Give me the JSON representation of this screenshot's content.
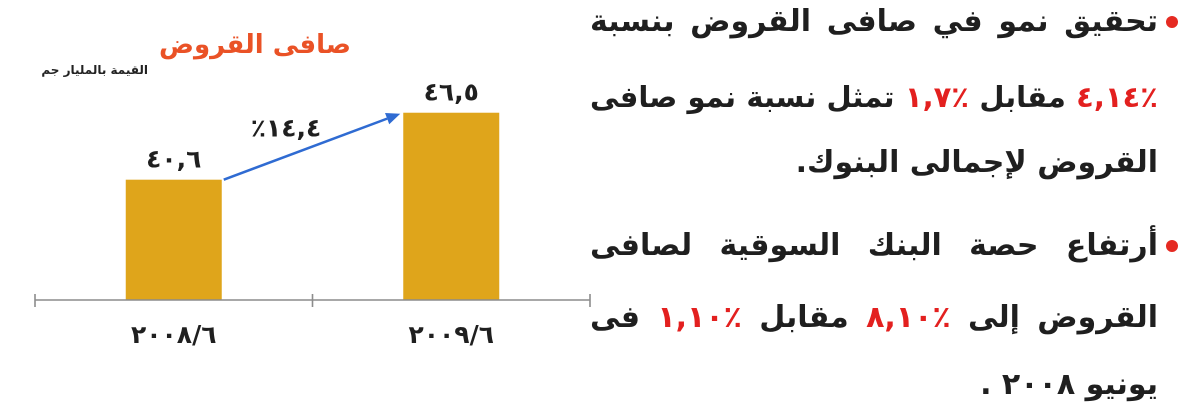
{
  "chart_data": {
    "type": "bar",
    "title": "صافى القروض",
    "subtitle": "القيمة بالمليار جم",
    "categories": [
      "٢٠٠٨/٦",
      "٢٠٠٩/٦"
    ],
    "values": [
      40.6,
      46.5
    ],
    "data_labels": [
      "٤٠,٦",
      "٤٦,٥"
    ],
    "ylim": [
      30,
      50
    ],
    "grid": false,
    "bar_color": "#dfa51b",
    "axis_color": "#8c8c8c",
    "growth_arrow": {
      "from_category": 0,
      "to_category": 1,
      "label": "٪١٤,٤",
      "color": "#2f6bd2"
    }
  },
  "colors": {
    "text": "#1f1f1f",
    "title": "#ea5226",
    "highlight": "#e3201f",
    "bullet": "#e52a22"
  },
  "bullets": [
    {
      "lines": [
        [
          {
            "text": "تحقيق نمو في صافى القروض بنسبة"
          }
        ],
        [
          {
            "text": "٤,١٤٪",
            "highlight": true
          },
          {
            "text": "مقابل"
          },
          {
            "text": "١,٧٪",
            "highlight": true
          },
          {
            "text": "تمثل نسبة نمو صافى"
          }
        ],
        [
          {
            "text": "القروض لإجمالى البنوك."
          }
        ]
      ]
    },
    {
      "lines": [
        [
          {
            "text": "أرتفاع حصة البنك السوقية لصافى"
          }
        ],
        [
          {
            "text": "القروض إلى"
          },
          {
            "text": "٨,١٠٪",
            "highlight": true
          },
          {
            "text": "مقابل"
          },
          {
            "text": "١,١٠٪",
            "highlight": true
          },
          {
            "text": "فى"
          }
        ],
        [
          {
            "text": "يونيو ٢٠٠٨ ."
          }
        ]
      ]
    }
  ]
}
